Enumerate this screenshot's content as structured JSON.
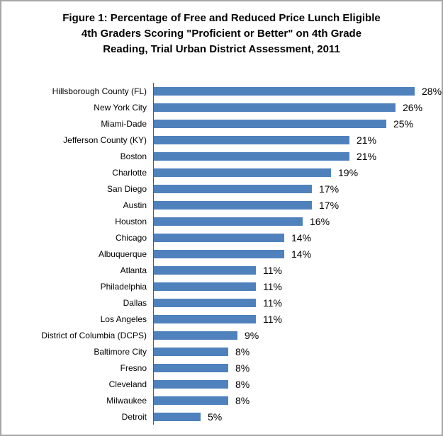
{
  "figure": {
    "title_lines": [
      "Figure 1: Percentage of Free and Reduced Price Lunch Eligible",
      "4th Graders Scoring \"Proficient or Better\" on 4th Grade",
      "Reading, Trial Urban District Assessment, 2011"
    ]
  },
  "chart_data": {
    "type": "bar",
    "orientation": "horizontal",
    "title": "Figure 1: Percentage of Free and Reduced Price Lunch Eligible 4th Graders Scoring \"Proficient or Better\" on 4th Grade Reading, Trial Urban District Assessment, 2011",
    "categories": [
      "Hillsborough County (FL)",
      "New York City",
      "Miami-Dade",
      "Jefferson County (KY)",
      "Boston",
      "Charlotte",
      "San Diego",
      "Austin",
      "Houston",
      "Chicago",
      "Albuquerque",
      "Atlanta",
      "Philadelphia",
      "Dallas",
      "Los Angeles",
      "District of Columbia (DCPS)",
      "Baltimore City",
      "Fresno",
      "Cleveland",
      "Milwaukee",
      "Detroit"
    ],
    "values": [
      28,
      26,
      25,
      21,
      21,
      19,
      17,
      17,
      16,
      14,
      14,
      11,
      11,
      11,
      11,
      9,
      8,
      8,
      8,
      8,
      5
    ],
    "value_labels": [
      "28%",
      "26%",
      "25%",
      "21%",
      "21%",
      "19%",
      "17%",
      "17%",
      "16%",
      "14%",
      "14%",
      "11%",
      "11%",
      "11%",
      "11%",
      "9%",
      "8%",
      "8%",
      "8%",
      "8%",
      "5%"
    ],
    "xlabel": "",
    "ylabel": "",
    "xlim": [
      0,
      30
    ],
    "grid": false,
    "legend": null,
    "data_labels": true,
    "bar_color": "#4F81BD",
    "axis_line_color": "#595959",
    "frame_border_color": "#A6A6A6"
  }
}
